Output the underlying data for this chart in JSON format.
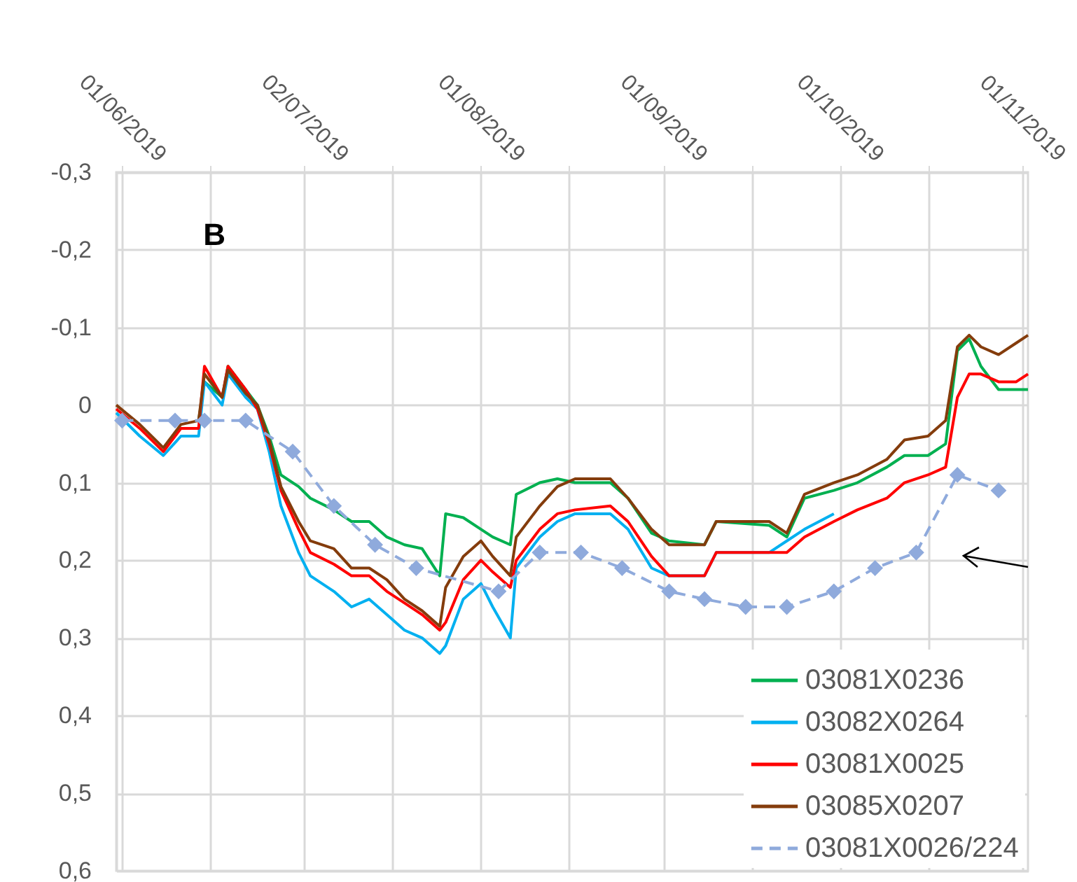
{
  "chart_data": {
    "type": "line",
    "annotations": [
      "B"
    ],
    "x": [
      "2019-05-31",
      "2019-06-04",
      "2019-06-08",
      "2019-06-11",
      "2019-06-14",
      "2019-06-15",
      "2019-06-18",
      "2019-06-19",
      "2019-06-22",
      "2019-06-24",
      "2019-06-26",
      "2019-06-28",
      "2019-07-01",
      "2019-07-03",
      "2019-07-07",
      "2019-07-10",
      "2019-07-13",
      "2019-07-16",
      "2019-07-19",
      "2019-07-22",
      "2019-07-25",
      "2019-07-26",
      "2019-07-29",
      "2019-08-01",
      "2019-08-03",
      "2019-08-06",
      "2019-08-07",
      "2019-08-11",
      "2019-08-14",
      "2019-08-17",
      "2019-08-23",
      "2019-08-26",
      "2019-08-30",
      "2019-09-02",
      "2019-09-08",
      "2019-09-10",
      "2019-09-19",
      "2019-09-22",
      "2019-09-25",
      "2019-09-30",
      "2019-10-04",
      "2019-10-09",
      "2019-10-12",
      "2019-10-16",
      "2019-10-19",
      "2019-10-21",
      "2019-10-23",
      "2019-10-25",
      "2019-10-28",
      "2019-10-31",
      "2019-11-02"
    ],
    "series": [
      {
        "name": "03081X0236",
        "color": "#00b050",
        "values": [
          null,
          null,
          null,
          null,
          0.02,
          -0.03,
          -0.01,
          -0.05,
          -0.02,
          0,
          0.04,
          0.09,
          0.105,
          0.12,
          0.135,
          0.15,
          0.15,
          0.17,
          0.18,
          0.185,
          0.22,
          0.14,
          0.145,
          0.16,
          0.17,
          0.18,
          0.115,
          0.1,
          0.095,
          0.1,
          0.1,
          0.12,
          0.165,
          0.175,
          0.18,
          0.15,
          0.155,
          0.17,
          0.12,
          0.11,
          0.1,
          0.08,
          0.065,
          0.065,
          0.05,
          -0.07,
          -0.085,
          -0.05,
          -0.02,
          -0.02,
          -0.02
        ]
      },
      {
        "name": "03082X0264",
        "color": "#00b0f0",
        "values": [
          0.01,
          0.04,
          0.065,
          0.04,
          0.04,
          -0.03,
          0,
          -0.04,
          -0.01,
          0.005,
          0.06,
          0.13,
          0.19,
          0.22,
          0.24,
          0.26,
          0.25,
          0.27,
          0.29,
          0.3,
          0.32,
          0.31,
          0.25,
          0.23,
          0.26,
          0.3,
          0.21,
          0.17,
          0.15,
          0.14,
          0.14,
          0.16,
          0.21,
          0.22,
          0.22,
          0.19,
          0.19,
          0.175,
          0.16,
          0.14,
          null,
          null,
          null,
          null,
          null,
          null,
          null,
          null,
          null,
          null,
          null
        ]
      },
      {
        "name": "03081X0025",
        "color": "#ff0000",
        "values": [
          0.005,
          0.03,
          0.06,
          0.03,
          0.03,
          -0.05,
          -0.01,
          -0.05,
          -0.02,
          0.005,
          0.05,
          0.11,
          0.16,
          0.19,
          0.205,
          0.22,
          0.22,
          0.24,
          0.255,
          0.27,
          0.29,
          0.28,
          0.225,
          0.2,
          0.215,
          0.235,
          0.2,
          0.16,
          0.14,
          0.135,
          0.13,
          0.15,
          0.195,
          0.22,
          0.22,
          0.19,
          0.19,
          0.19,
          0.17,
          0.15,
          0.135,
          0.12,
          0.1,
          0.09,
          0.08,
          -0.01,
          -0.04,
          -0.04,
          -0.03,
          -0.03,
          -0.04
        ]
      },
      {
        "name": "03085X0207",
        "color": "#843c0c",
        "values": [
          0,
          0.025,
          0.055,
          0.025,
          0.02,
          -0.04,
          -0.01,
          -0.045,
          -0.015,
          0,
          0.045,
          0.105,
          0.15,
          0.175,
          0.185,
          0.21,
          0.21,
          0.225,
          0.25,
          0.265,
          0.285,
          0.235,
          0.195,
          0.175,
          0.195,
          0.22,
          0.17,
          0.13,
          0.105,
          0.095,
          0.095,
          0.12,
          0.16,
          0.18,
          0.18,
          0.15,
          0.15,
          0.165,
          0.115,
          0.1,
          0.09,
          0.07,
          0.045,
          0.04,
          0.02,
          -0.075,
          -0.09,
          -0.075,
          -0.065,
          -0.08,
          -0.09
        ]
      },
      {
        "name": "03081X0026/224",
        "color": "#8faadc",
        "marker": "diamond",
        "line_style": "dashed",
        "x": [
          "2019-06-01",
          "2019-06-10",
          "2019-06-15",
          "2019-06-22",
          "2019-06-30",
          "2019-07-07",
          "2019-07-14",
          "2019-07-21",
          "2019-08-04",
          "2019-08-11",
          "2019-08-18",
          "2019-08-25",
          "2019-09-02",
          "2019-09-08",
          "2019-09-15",
          "2019-09-22",
          "2019-09-30",
          "2019-10-07",
          "2019-10-14",
          "2019-10-21",
          "2019-10-28"
        ],
        "values": [
          0.02,
          0.02,
          0.02,
          0.02,
          0.06,
          0.13,
          0.18,
          0.21,
          0.24,
          0.19,
          0.19,
          0.21,
          0.24,
          0.25,
          0.26,
          0.26,
          0.24,
          0.21,
          0.19,
          0.09,
          0.11
        ]
      }
    ],
    "xlim": [
      "2019-05-31",
      "2019-11-02"
    ],
    "xticks": [
      {
        "value": "2019-06-01",
        "label": "01/06/2019"
      },
      {
        "value": "2019-06-16",
        "label": null
      },
      {
        "value": "2019-07-02",
        "label": "02/07/2019"
      },
      {
        "value": "2019-07-17",
        "label": null
      },
      {
        "value": "2019-08-01",
        "label": "01/08/2019"
      },
      {
        "value": "2019-08-16",
        "label": null
      },
      {
        "value": "2019-09-01",
        "label": "01/09/2019"
      },
      {
        "value": "2019-09-16",
        "label": null
      },
      {
        "value": "2019-10-01",
        "label": "01/10/2019"
      },
      {
        "value": "2019-10-16",
        "label": null
      },
      {
        "value": "2019-11-01",
        "label": "01/11/2019"
      }
    ],
    "ylim": [
      0.6,
      -0.3
    ],
    "yticks": [
      {
        "value": -0.3,
        "label": "-0,3"
      },
      {
        "value": -0.2,
        "label": "-0,2"
      },
      {
        "value": -0.1,
        "label": "-0,1"
      },
      {
        "value": 0,
        "label": "0"
      },
      {
        "value": 0.1,
        "label": "0,1"
      },
      {
        "value": 0.2,
        "label": "0,2"
      },
      {
        "value": 0.3,
        "label": "0,3"
      },
      {
        "value": 0.4,
        "label": "0,4"
      },
      {
        "value": 0.5,
        "label": "0,5"
      },
      {
        "value": 0.6,
        "label": "0,6"
      }
    ],
    "grid": true,
    "legend": "bottom right"
  }
}
